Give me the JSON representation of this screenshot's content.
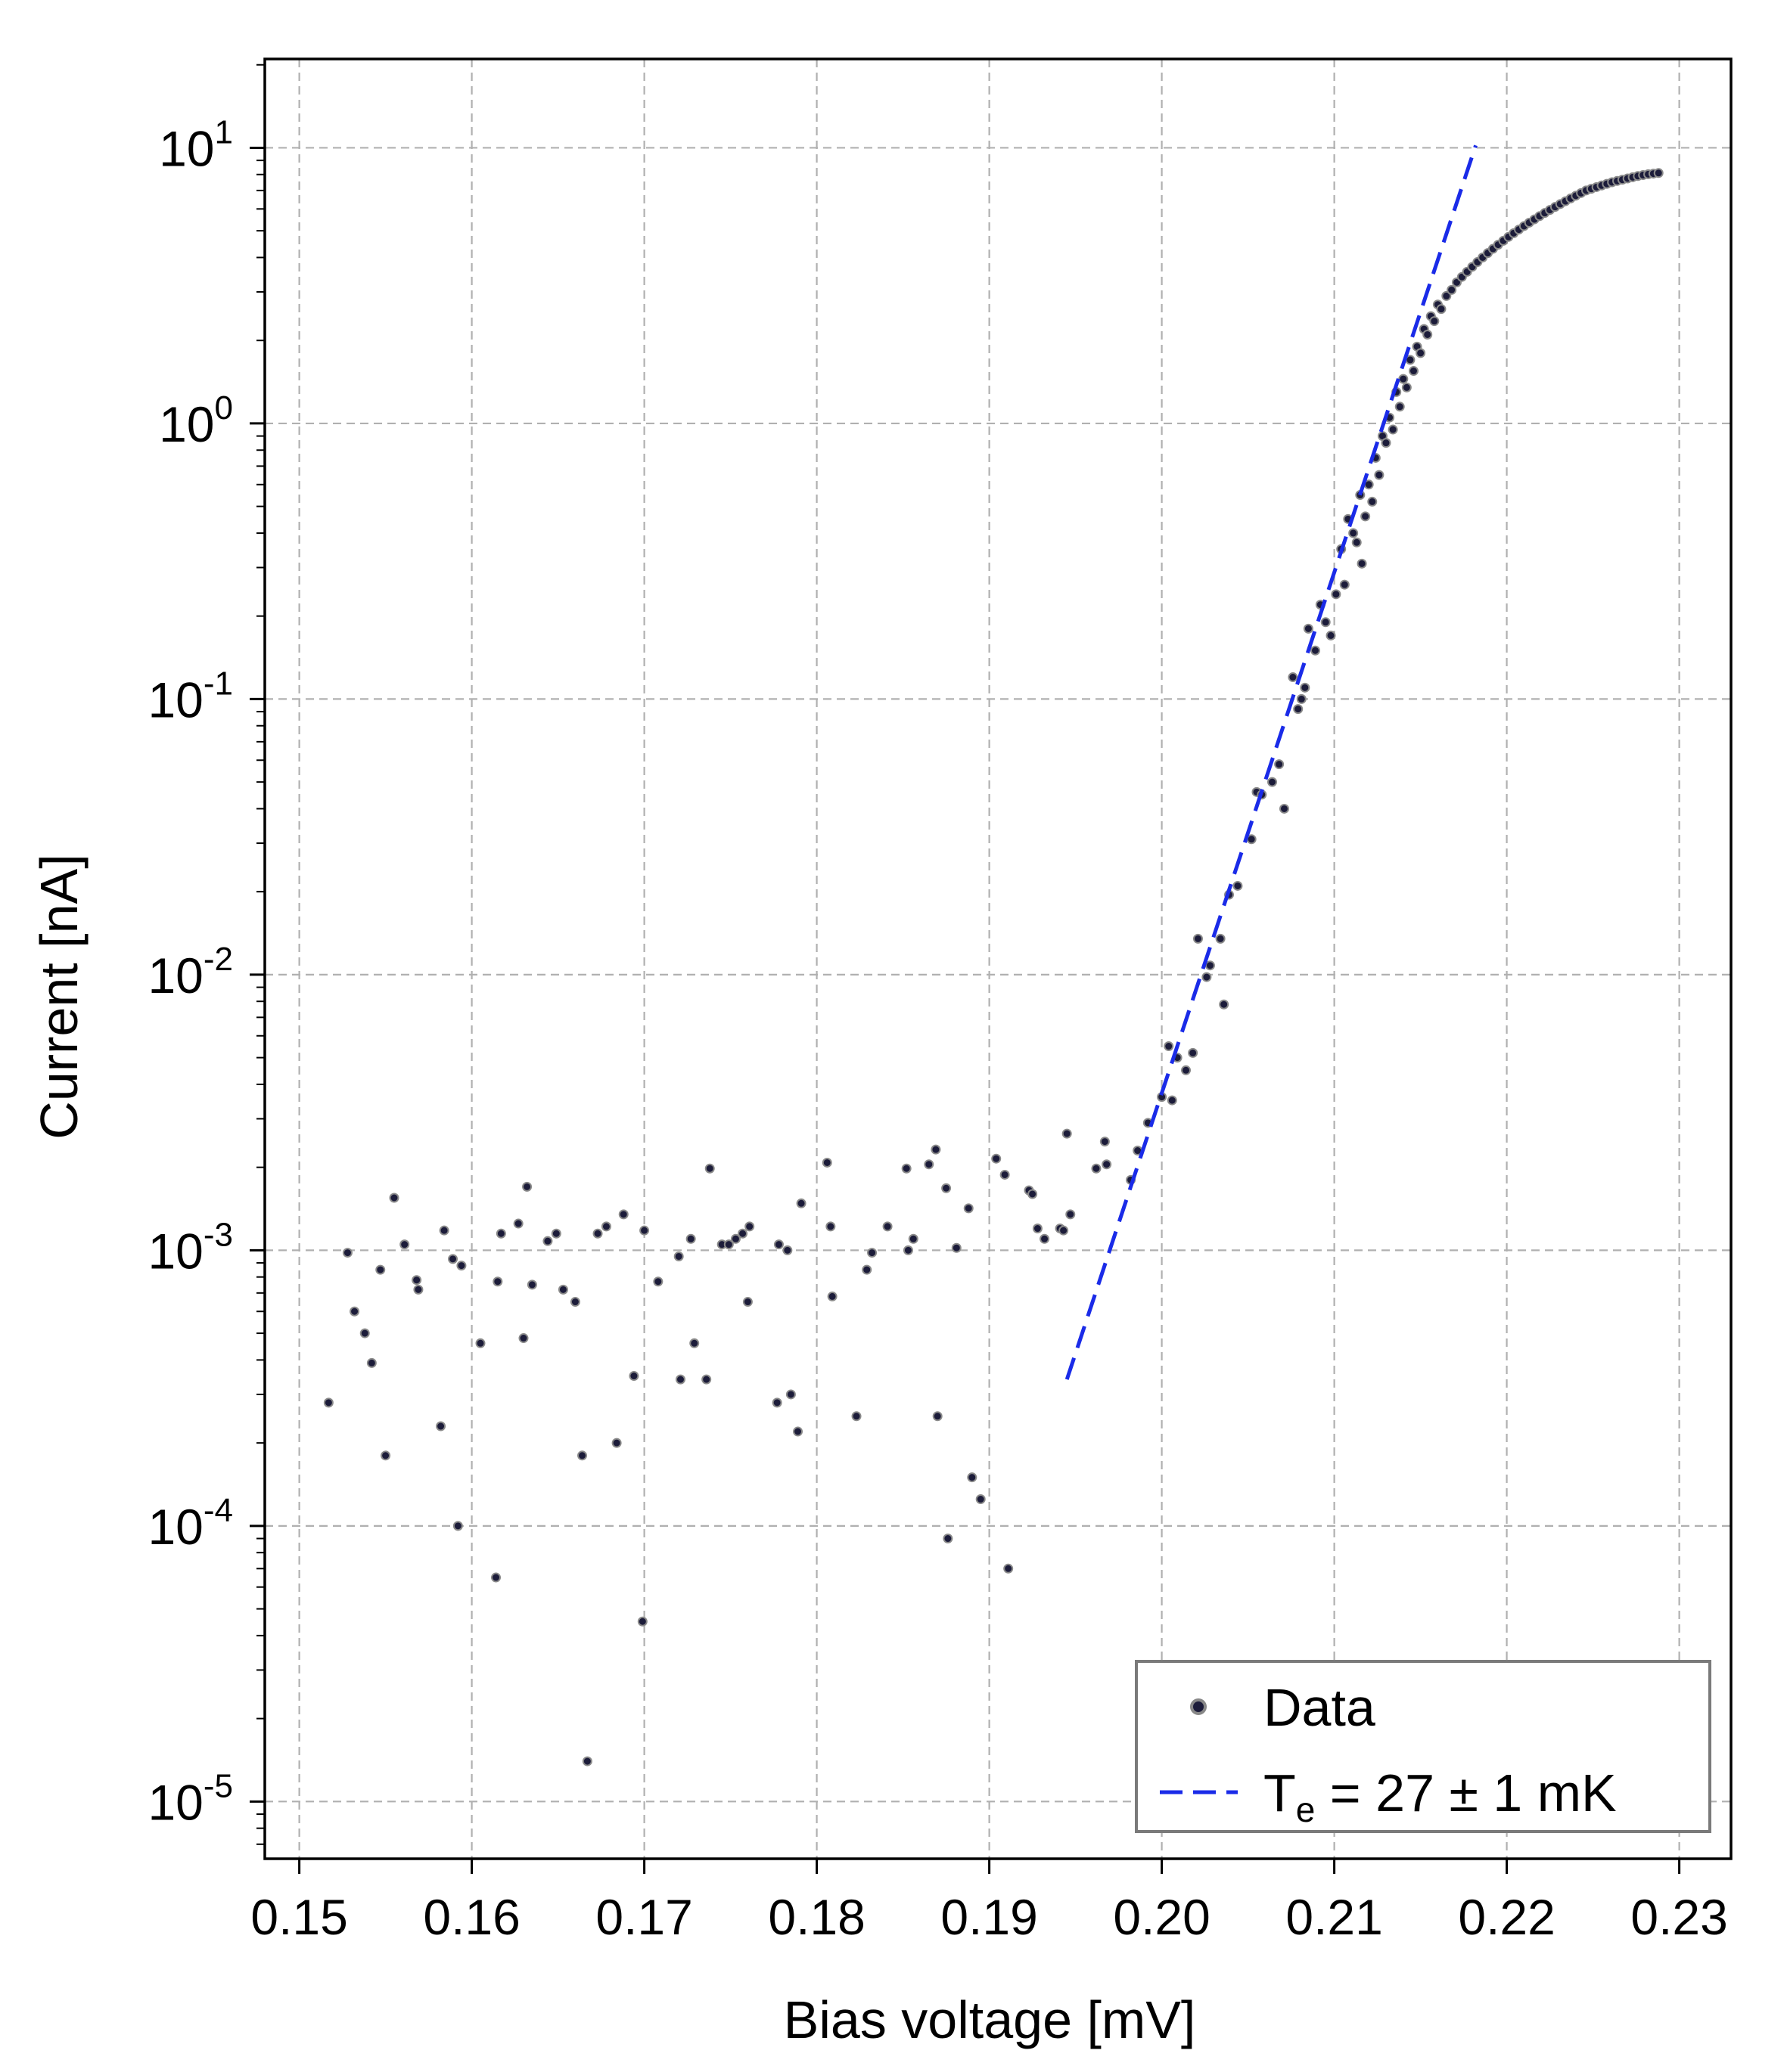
{
  "chart_data": {
    "type": "scatter",
    "xlabel": "Bias voltage [mV]",
    "ylabel": "Current [nA]",
    "y_scale": "log",
    "xlim": [
      0.148,
      0.233
    ],
    "ylim": [
      6.2e-06,
      21
    ],
    "x_ticks": [
      0.15,
      0.16,
      0.17,
      0.18,
      0.19,
      0.2,
      0.21,
      0.22,
      0.23
    ],
    "x_tick_labels": [
      "0.15",
      "0.16",
      "0.17",
      "0.18",
      "0.19",
      "0.20",
      "0.21",
      "0.22",
      "0.23"
    ],
    "y_ticks": [
      10,
      1,
      0.1,
      0.01,
      0.001,
      0.0001,
      1e-05
    ],
    "y_tick_labels": [
      {
        "base": "10",
        "exp": "1"
      },
      {
        "base": "10",
        "exp": "0"
      },
      {
        "base": "10",
        "exp": "-1"
      },
      {
        "base": "10",
        "exp": "-2"
      },
      {
        "base": "10",
        "exp": "-3"
      },
      {
        "base": "10",
        "exp": "-4"
      },
      {
        "base": "10",
        "exp": "-5"
      }
    ],
    "grid": true,
    "legend": {
      "position": "bottom-right",
      "entries": [
        {
          "label": "Data",
          "marker": "dot"
        },
        {
          "label_main": "T",
          "label_sub": "e",
          "label_rest": " = 27 ± 1 mK",
          "marker": "dashed-line"
        }
      ]
    },
    "series": [
      {
        "name": "Data",
        "kind": "scatter",
        "color": "#1c1c3a",
        "points": [
          [
            0.1517,
            0.00028
          ],
          [
            0.1528,
            0.00098
          ],
          [
            0.1532,
            0.0006
          ],
          [
            0.1538,
            0.0005
          ],
          [
            0.1542,
            0.00039
          ],
          [
            0.1547,
            0.00085
          ],
          [
            0.155,
            0.00018
          ],
          [
            0.1555,
            0.00155
          ],
          [
            0.1561,
            0.00105
          ],
          [
            0.1568,
            0.00078
          ],
          [
            0.1569,
            0.00072
          ],
          [
            0.1582,
            0.00023
          ],
          [
            0.1584,
            0.00118
          ],
          [
            0.1589,
            0.00093
          ],
          [
            0.1592,
            0.0001
          ],
          [
            0.1594,
            0.00088
          ],
          [
            0.1605,
            0.00046
          ],
          [
            0.1614,
            6.5e-05
          ],
          [
            0.1615,
            0.00077
          ],
          [
            0.1617,
            0.00115
          ],
          [
            0.1627,
            0.00125
          ],
          [
            0.163,
            0.00048
          ],
          [
            0.1632,
            0.0017
          ],
          [
            0.1635,
            0.00075
          ],
          [
            0.1644,
            0.00108
          ],
          [
            0.1649,
            0.00115
          ],
          [
            0.1653,
            0.00072
          ],
          [
            0.166,
            0.00065
          ],
          [
            0.1664,
            0.00018
          ],
          [
            0.1667,
            1.4e-05
          ],
          [
            0.1673,
            0.00115
          ],
          [
            0.1678,
            0.00122
          ],
          [
            0.1684,
            0.0002
          ],
          [
            0.1688,
            0.00135
          ],
          [
            0.1694,
            0.00035
          ],
          [
            0.1699,
            4.5e-05
          ],
          [
            0.17,
            0.00118
          ],
          [
            0.1708,
            0.00077
          ],
          [
            0.172,
            0.00095
          ],
          [
            0.1721,
            0.00034
          ],
          [
            0.1727,
            0.0011
          ],
          [
            0.1729,
            0.00046
          ],
          [
            0.1736,
            0.00034
          ],
          [
            0.1738,
            0.00198
          ],
          [
            0.1745,
            0.00105
          ],
          [
            0.1749,
            0.00105
          ],
          [
            0.1753,
            0.0011
          ],
          [
            0.1757,
            0.00115
          ],
          [
            0.176,
            0.00065
          ],
          [
            0.1761,
            0.00122
          ],
          [
            0.1777,
            0.00028
          ],
          [
            0.1778,
            0.00105
          ],
          [
            0.1783,
            0.001
          ],
          [
            0.1785,
            0.0003
          ],
          [
            0.1789,
            0.00022
          ],
          [
            0.1791,
            0.00148
          ],
          [
            0.1806,
            0.00208
          ],
          [
            0.1808,
            0.00122
          ],
          [
            0.1809,
            0.00068
          ],
          [
            0.1823,
            0.00025
          ],
          [
            0.1829,
            0.00085
          ],
          [
            0.1832,
            0.00098
          ],
          [
            0.1841,
            0.00122
          ],
          [
            0.1852,
            0.00198
          ],
          [
            0.1853,
            0.001
          ],
          [
            0.1856,
            0.0011
          ],
          [
            0.1865,
            0.00205
          ],
          [
            0.1869,
            0.00232
          ],
          [
            0.187,
            0.00025
          ],
          [
            0.1875,
            0.00168
          ],
          [
            0.1876,
            9e-05
          ],
          [
            0.1881,
            0.00102
          ],
          [
            0.1888,
            0.00142
          ],
          [
            0.189,
            0.00015
          ],
          [
            0.1895,
            0.000125
          ],
          [
            0.1904,
            0.00215
          ],
          [
            0.1909,
            0.00188
          ],
          [
            0.1911,
            7e-05
          ],
          [
            0.1923,
            0.00165
          ],
          [
            0.1925,
            0.0016
          ],
          [
            0.1928,
            0.0012
          ],
          [
            0.1932,
            0.0011
          ],
          [
            0.1941,
            0.0012
          ],
          [
            0.1943,
            0.00118
          ],
          [
            0.1945,
            0.00265
          ],
          [
            0.1947,
            0.00135
          ],
          [
            0.1962,
            0.00198
          ],
          [
            0.1967,
            0.00248
          ],
          [
            0.1968,
            0.00205
          ],
          [
            0.1982,
            0.0018
          ],
          [
            0.1986,
            0.0023
          ],
          [
            0.1992,
            0.0029
          ],
          [
            0.2,
            0.0036
          ],
          [
            0.2004,
            0.0055
          ],
          [
            0.2006,
            0.0035
          ],
          [
            0.2009,
            0.005
          ],
          [
            0.2014,
            0.0045
          ],
          [
            0.2018,
            0.0052
          ],
          [
            0.2021,
            0.0135
          ],
          [
            0.2026,
            0.0098
          ],
          [
            0.2028,
            0.0108
          ],
          [
            0.2034,
            0.0135
          ],
          [
            0.2036,
            0.0078
          ],
          [
            0.2039,
            0.0195
          ],
          [
            0.2044,
            0.021
          ],
          [
            0.2052,
            0.031
          ],
          [
            0.2055,
            0.046
          ],
          [
            0.2058,
            0.045
          ],
          [
            0.2064,
            0.05
          ],
          [
            0.2068,
            0.058
          ],
          [
            0.2071,
            0.04
          ],
          [
            0.2076,
            0.12
          ],
          [
            0.2079,
            0.092
          ],
          [
            0.2081,
            0.1
          ],
          [
            0.2083,
            0.11
          ],
          [
            0.2085,
            0.18
          ],
          [
            0.2089,
            0.15
          ],
          [
            0.2092,
            0.22
          ],
          [
            0.2095,
            0.19
          ],
          [
            0.2098,
            0.17
          ],
          [
            0.2101,
            0.24
          ],
          [
            0.2104,
            0.35
          ],
          [
            0.2106,
            0.26
          ],
          [
            0.2108,
            0.45
          ],
          [
            0.2111,
            0.4
          ],
          [
            0.2113,
            0.37
          ],
          [
            0.2115,
            0.55
          ],
          [
            0.2116,
            0.31
          ],
          [
            0.2118,
            0.46
          ],
          [
            0.212,
            0.6
          ],
          [
            0.2122,
            0.52
          ],
          [
            0.2124,
            0.75
          ],
          [
            0.2126,
            0.65
          ],
          [
            0.2128,
            0.9
          ],
          [
            0.213,
            0.85
          ],
          [
            0.2132,
            1.05
          ],
          [
            0.2134,
            0.95
          ],
          [
            0.2136,
            1.3
          ],
          [
            0.2138,
            1.15
          ],
          [
            0.214,
            1.45
          ],
          [
            0.2142,
            1.35
          ],
          [
            0.2144,
            1.7
          ],
          [
            0.2146,
            1.55
          ],
          [
            0.2148,
            1.9
          ],
          [
            0.215,
            1.8
          ],
          [
            0.2152,
            2.2
          ],
          [
            0.2154,
            2.1
          ],
          [
            0.2156,
            2.45
          ],
          [
            0.2158,
            2.35
          ],
          [
            0.216,
            2.7
          ],
          [
            0.2162,
            2.6
          ],
          [
            0.2165,
            2.9
          ],
          [
            0.2168,
            3.05
          ],
          [
            0.2171,
            3.25
          ],
          [
            0.2174,
            3.4
          ],
          [
            0.2177,
            3.55
          ],
          [
            0.218,
            3.7
          ],
          [
            0.2183,
            3.85
          ],
          [
            0.2186,
            4.0
          ],
          [
            0.2189,
            4.15
          ],
          [
            0.2192,
            4.3
          ],
          [
            0.2195,
            4.45
          ],
          [
            0.2198,
            4.6
          ],
          [
            0.2201,
            4.75
          ],
          [
            0.2204,
            4.9
          ],
          [
            0.2207,
            5.05
          ],
          [
            0.221,
            5.2
          ],
          [
            0.2213,
            5.35
          ],
          [
            0.2216,
            5.5
          ],
          [
            0.2219,
            5.65
          ],
          [
            0.2222,
            5.8
          ],
          [
            0.2225,
            5.95
          ],
          [
            0.2228,
            6.1
          ],
          [
            0.2231,
            6.25
          ],
          [
            0.2234,
            6.4
          ],
          [
            0.2237,
            6.55
          ],
          [
            0.224,
            6.7
          ],
          [
            0.2243,
            6.85
          ],
          [
            0.2246,
            7.0
          ],
          [
            0.2249,
            7.1
          ],
          [
            0.2252,
            7.2
          ],
          [
            0.2255,
            7.3
          ],
          [
            0.2258,
            7.4
          ],
          [
            0.2261,
            7.5
          ],
          [
            0.2264,
            7.58
          ],
          [
            0.2267,
            7.66
          ],
          [
            0.227,
            7.74
          ],
          [
            0.2273,
            7.82
          ],
          [
            0.2276,
            7.9
          ],
          [
            0.2279,
            7.96
          ],
          [
            0.2282,
            8.02
          ],
          [
            0.2285,
            8.06
          ],
          [
            0.2288,
            8.1
          ]
        ]
      },
      {
        "name": "T_e = 27 ± 1 mK",
        "kind": "line",
        "style": "dashed",
        "color": "#1a2be8",
        "points": [
          [
            0.1945,
            0.00034
          ],
          [
            0.2182,
            10.2
          ]
        ]
      }
    ]
  }
}
